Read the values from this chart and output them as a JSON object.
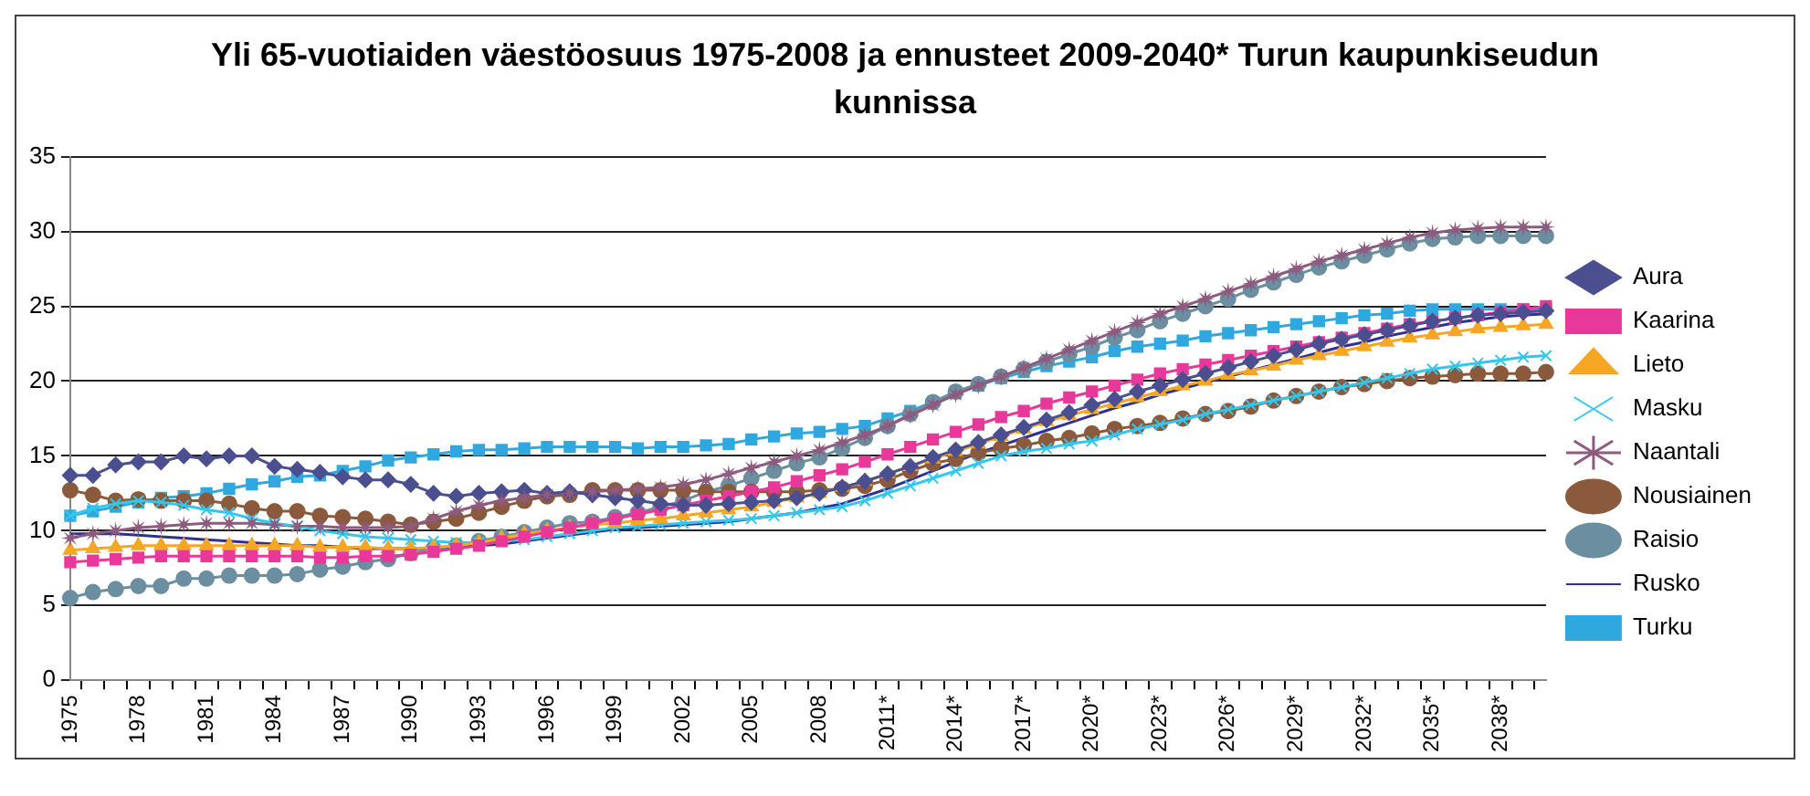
{
  "chart_data": {
    "type": "line",
    "title": "Yli 65-vuotiaiden väestöosuus 1975-2008 ja ennusteet 2009-2040* Turun kaupunkiseudun kunnissa",
    "categories": [
      "1975",
      null,
      null,
      "1978",
      null,
      null,
      "1981",
      null,
      null,
      "1984",
      null,
      null,
      "1987",
      null,
      null,
      "1990",
      null,
      null,
      "1993",
      null,
      null,
      "1996",
      null,
      null,
      "1999",
      null,
      null,
      "2002",
      null,
      null,
      "2005",
      null,
      null,
      "2008",
      null,
      null,
      "2011*",
      null,
      null,
      "2014*",
      null,
      null,
      "2017*",
      null,
      null,
      "2020*",
      null,
      null,
      "2023*",
      null,
      null,
      "2026*",
      null,
      null,
      "2029*",
      null,
      null,
      "2032*",
      null,
      null,
      "2035*",
      null,
      null,
      "2038*",
      null,
      null
    ],
    "ylim": [
      0,
      35
    ],
    "yticks": [
      0,
      5,
      10,
      15,
      20,
      25,
      30,
      35
    ],
    "grid": "y",
    "legend": "right",
    "series": [
      {
        "name": "Aura",
        "color": "#4b4f8f",
        "marker": "diamond",
        "values": [
          13.7,
          13.7,
          14.4,
          14.6,
          14.6,
          15.0,
          14.8,
          15.0,
          15.0,
          14.3,
          14.1,
          13.9,
          13.6,
          13.4,
          13.4,
          13.1,
          12.5,
          12.3,
          12.5,
          12.6,
          12.7,
          12.5,
          12.6,
          12.4,
          12.2,
          12.0,
          11.8,
          11.7,
          11.7,
          11.8,
          11.9,
          12.0,
          12.2,
          12.5,
          12.9,
          13.3,
          13.8,
          14.3,
          14.9,
          15.4,
          15.9,
          16.4,
          16.9,
          17.4,
          17.9,
          18.4,
          18.8,
          19.3,
          19.7,
          20.1,
          20.5,
          20.9,
          21.3,
          21.7,
          22.1,
          22.5,
          22.8,
          23.1,
          23.4,
          23.7,
          24.0,
          24.2,
          24.4,
          24.5,
          24.6,
          24.7
        ]
      },
      {
        "name": "Kaarina",
        "color": "#e8399a",
        "marker": "square",
        "values": [
          7.9,
          8.0,
          8.1,
          8.2,
          8.3,
          8.3,
          8.3,
          8.3,
          8.3,
          8.3,
          8.3,
          8.2,
          8.2,
          8.3,
          8.3,
          8.4,
          8.6,
          8.8,
          9.0,
          9.3,
          9.6,
          9.9,
          10.2,
          10.5,
          10.8,
          11.1,
          11.4,
          11.7,
          12.0,
          12.3,
          12.6,
          12.9,
          13.3,
          13.7,
          14.1,
          14.6,
          15.1,
          15.6,
          16.1,
          16.6,
          17.1,
          17.6,
          18.0,
          18.5,
          18.9,
          19.3,
          19.7,
          20.1,
          20.5,
          20.8,
          21.1,
          21.4,
          21.7,
          22.0,
          22.3,
          22.6,
          22.9,
          23.2,
          23.5,
          23.8,
          24.0,
          24.2,
          24.4,
          24.6,
          24.8,
          25.0
        ]
      },
      {
        "name": "Lieto",
        "color": "#f5a623",
        "marker": "triangle",
        "values": [
          8.7,
          8.8,
          8.9,
          9.0,
          9.0,
          9.0,
          9.0,
          9.0,
          9.0,
          9.0,
          9.0,
          8.9,
          8.9,
          8.9,
          8.8,
          8.8,
          8.9,
          9.0,
          9.2,
          9.5,
          9.8,
          10.0,
          10.2,
          10.4,
          10.5,
          10.7,
          10.8,
          11.0,
          11.2,
          11.4,
          11.6,
          11.9,
          12.2,
          12.5,
          12.9,
          13.3,
          13.8,
          14.3,
          14.8,
          15.3,
          15.8,
          16.3,
          16.8,
          17.3,
          17.7,
          18.1,
          18.5,
          18.9,
          19.3,
          19.7,
          20.0,
          20.4,
          20.7,
          21.0,
          21.4,
          21.7,
          22.0,
          22.3,
          22.6,
          22.9,
          23.1,
          23.3,
          23.5,
          23.6,
          23.7,
          23.8
        ]
      },
      {
        "name": "Masku",
        "color": "#33c6ee",
        "marker": "cross",
        "values": [
          11.0,
          11.5,
          11.8,
          12.0,
          11.9,
          11.7,
          11.4,
          11.2,
          10.8,
          10.5,
          10.3,
          10.0,
          9.8,
          9.6,
          9.5,
          9.4,
          9.3,
          9.2,
          9.2,
          9.3,
          9.4,
          9.6,
          9.8,
          10.0,
          10.2,
          10.3,
          10.4,
          10.5,
          10.6,
          10.7,
          10.8,
          11.0,
          11.2,
          11.4,
          11.6,
          12.0,
          12.5,
          13.0,
          13.5,
          14.0,
          14.5,
          15.0,
          15.3,
          15.5,
          15.8,
          16.0,
          16.4,
          16.8,
          17.1,
          17.4,
          17.8,
          18.1,
          18.4,
          18.7,
          19.0,
          19.3,
          19.6,
          19.9,
          20.2,
          20.5,
          20.8,
          21.0,
          21.2,
          21.4,
          21.6,
          21.7
        ]
      },
      {
        "name": "Naantali",
        "color": "#8e5a7e",
        "marker": "star",
        "values": [
          9.5,
          9.8,
          10.0,
          10.2,
          10.3,
          10.4,
          10.5,
          10.5,
          10.5,
          10.4,
          10.3,
          10.3,
          10.2,
          10.2,
          10.2,
          10.3,
          10.8,
          11.3,
          11.7,
          12.0,
          12.2,
          12.4,
          12.5,
          12.6,
          12.7,
          12.8,
          12.9,
          13.1,
          13.4,
          13.8,
          14.2,
          14.6,
          15.0,
          15.4,
          15.9,
          16.4,
          17.0,
          17.7,
          18.4,
          19.1,
          19.7,
          20.3,
          20.9,
          21.5,
          22.1,
          22.7,
          23.3,
          23.9,
          24.5,
          25.0,
          25.5,
          26.0,
          26.5,
          27.0,
          27.5,
          28.0,
          28.4,
          28.8,
          29.2,
          29.6,
          29.9,
          30.1,
          30.2,
          30.3,
          30.3,
          30.3
        ]
      },
      {
        "name": "Nousiainen",
        "color": "#8b5a3c",
        "marker": "circle",
        "values": [
          12.7,
          12.4,
          12.0,
          12.1,
          12.0,
          12.0,
          12.0,
          11.8,
          11.5,
          11.3,
          11.3,
          11.0,
          10.9,
          10.8,
          10.6,
          10.4,
          10.6,
          10.8,
          11.2,
          11.6,
          12.0,
          12.3,
          12.4,
          12.7,
          12.7,
          12.7,
          12.7,
          12.7,
          12.6,
          12.6,
          12.6,
          12.6,
          12.6,
          12.7,
          12.8,
          13.0,
          13.4,
          14.0,
          14.5,
          14.8,
          15.2,
          15.5,
          15.7,
          16.0,
          16.2,
          16.5,
          16.8,
          17.0,
          17.2,
          17.5,
          17.8,
          18.0,
          18.3,
          18.7,
          19.0,
          19.3,
          19.6,
          19.8,
          20.0,
          20.2,
          20.3,
          20.4,
          20.5,
          20.5,
          20.5,
          20.6
        ]
      },
      {
        "name": "Raisio",
        "color": "#6b8ea0",
        "marker": "circle",
        "values": [
          5.5,
          5.9,
          6.1,
          6.3,
          6.3,
          6.8,
          6.8,
          7.0,
          7.0,
          7.0,
          7.1,
          7.4,
          7.6,
          7.9,
          8.1,
          8.5,
          8.8,
          9.0,
          9.3,
          9.6,
          9.9,
          10.2,
          10.5,
          10.6,
          10.9,
          11.2,
          11.6,
          12.0,
          12.6,
          13.0,
          13.5,
          14.0,
          14.5,
          14.9,
          15.5,
          16.2,
          17.0,
          17.8,
          18.6,
          19.3,
          19.8,
          20.3,
          20.8,
          21.3,
          21.8,
          22.3,
          22.9,
          23.4,
          24.0,
          24.5,
          25.0,
          25.5,
          26.1,
          26.6,
          27.1,
          27.6,
          28.0,
          28.4,
          28.8,
          29.2,
          29.5,
          29.6,
          29.7,
          29.7,
          29.7,
          29.7
        ]
      },
      {
        "name": "Rusko",
        "color": "#2e3192",
        "marker": "none",
        "values": [
          9.8,
          9.8,
          9.8,
          9.7,
          9.6,
          9.5,
          9.4,
          9.3,
          9.2,
          9.1,
          9.0,
          9.0,
          8.9,
          8.8,
          8.8,
          8.8,
          8.8,
          8.9,
          9.0,
          9.1,
          9.3,
          9.5,
          9.7,
          9.9,
          10.1,
          10.2,
          10.3,
          10.4,
          10.5,
          10.6,
          10.8,
          11.0,
          11.2,
          11.5,
          11.8,
          12.3,
          12.8,
          13.4,
          14.0,
          14.6,
          15.2,
          15.7,
          16.2,
          16.7,
          17.2,
          17.7,
          18.2,
          18.6,
          19.1,
          19.5,
          19.9,
          20.3,
          20.7,
          21.1,
          21.5,
          21.9,
          22.3,
          22.6,
          23.0,
          23.3,
          23.6,
          23.9,
          24.1,
          24.3,
          24.4,
          24.5
        ]
      },
      {
        "name": "Turku",
        "color": "#2fa8e0",
        "marker": "square",
        "values": [
          11.0,
          11.3,
          11.6,
          11.9,
          12.2,
          12.3,
          12.5,
          12.8,
          13.1,
          13.3,
          13.6,
          13.7,
          14.0,
          14.3,
          14.7,
          14.9,
          15.1,
          15.3,
          15.4,
          15.4,
          15.5,
          15.6,
          15.6,
          15.6,
          15.6,
          15.5,
          15.6,
          15.6,
          15.7,
          15.8,
          16.1,
          16.3,
          16.5,
          16.6,
          16.8,
          17.0,
          17.5,
          18.0,
          18.6,
          19.2,
          19.7,
          20.2,
          20.6,
          21.0,
          21.3,
          21.6,
          22.0,
          22.3,
          22.5,
          22.7,
          23.0,
          23.2,
          23.4,
          23.6,
          23.8,
          24.0,
          24.2,
          24.4,
          24.5,
          24.7,
          24.8,
          24.8,
          24.8,
          24.8,
          24.8,
          24.8
        ]
      }
    ]
  }
}
